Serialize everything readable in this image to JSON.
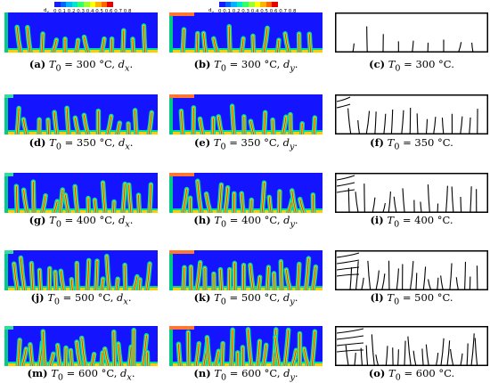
{
  "legends": [
    {
      "label": "d",
      "sub": "x",
      "ticks": "0 0.1 0.2 0.3 0.4 0.5 0.6 0.7 0.8"
    },
    {
      "label": "d",
      "sub": "y",
      "ticks": "0 0.1 0.2 0.3 0.4 0.5 0.6 0.7 0.8"
    }
  ],
  "colormap": [
    "#1a1aff",
    "#0066ff",
    "#00b3ff",
    "#00e6cc",
    "#33ff66",
    "#99ff33",
    "#ffff00",
    "#ffb300",
    "#ff6600",
    "#e60000"
  ],
  "rows": [
    {
      "temp": "300",
      "captions": [
        {
          "tag": "(a)",
          "var": "d",
          "sub": "x",
          "dot": "."
        },
        {
          "tag": "(b)",
          "var": "d",
          "sub": "y",
          "dot": "."
        },
        {
          "tag": "(c)",
          "dot": "."
        }
      ]
    },
    {
      "temp": "350",
      "captions": [
        {
          "tag": "(d)",
          "var": "d",
          "sub": "x",
          "dot": "."
        },
        {
          "tag": "(e)",
          "var": "d",
          "sub": "y",
          "dot": "."
        },
        {
          "tag": "(f)",
          "dot": "."
        }
      ]
    },
    {
      "temp": "400",
      "captions": [
        {
          "tag": "(g)",
          "var": "d",
          "sub": "x",
          "dot": "."
        },
        {
          "tag": "(h)",
          "var": "d",
          "sub": "y",
          "dot": "."
        },
        {
          "tag": "(i)",
          "dot": "."
        }
      ]
    },
    {
      "temp": "500",
      "captions": [
        {
          "tag": "(j)",
          "var": "d",
          "sub": "x",
          "dot": "."
        },
        {
          "tag": "(k)",
          "var": "d",
          "sub": "y",
          "dot": "."
        },
        {
          "tag": "(l)",
          "dot": "."
        }
      ]
    },
    {
      "temp": "600",
      "captions": [
        {
          "tag": "(m)",
          "var": "d",
          "sub": "x",
          "dot": "."
        },
        {
          "tag": "(n)",
          "var": "d",
          "sub": "y",
          "dot": "."
        },
        {
          "tag": "(o)",
          "dot": "."
        }
      ]
    }
  ],
  "caption_prefix": "T",
  "caption_prefix_sub": "0",
  "caption_unit": "°C"
}
